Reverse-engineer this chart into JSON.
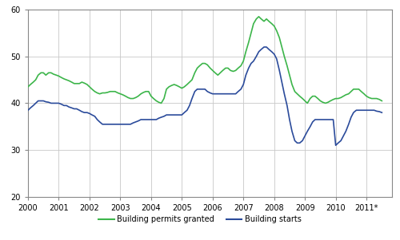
{
  "xlim": [
    2000,
    2011.83
  ],
  "ylim": [
    20,
    60
  ],
  "yticks": [
    20,
    30,
    40,
    50,
    60
  ],
  "xtick_labels": [
    "2000",
    "2001",
    "2002",
    "2003",
    "2004",
    "2005",
    "2006",
    "2007",
    "2008",
    "2009",
    "2010",
    "2011*"
  ],
  "xtick_positions": [
    2000,
    2001,
    2002,
    2003,
    2004,
    2005,
    2006,
    2007,
    2008,
    2009,
    2010,
    2011
  ],
  "permits_color": "#3cb54a",
  "starts_color": "#2b4b9b",
  "background_color": "#ffffff",
  "grid_color": "#c8c8c8",
  "legend_label_permits": "Building permits granted",
  "legend_label_starts": "Building starts",
  "permits_x": [
    2000.0,
    2000.08,
    2000.17,
    2000.25,
    2000.33,
    2000.42,
    2000.5,
    2000.58,
    2000.67,
    2000.75,
    2000.83,
    2000.92,
    2001.0,
    2001.08,
    2001.17,
    2001.25,
    2001.33,
    2001.42,
    2001.5,
    2001.58,
    2001.67,
    2001.75,
    2001.83,
    2001.92,
    2002.0,
    2002.08,
    2002.17,
    2002.25,
    2002.33,
    2002.42,
    2002.5,
    2002.58,
    2002.67,
    2002.75,
    2002.83,
    2002.92,
    2003.0,
    2003.08,
    2003.17,
    2003.25,
    2003.33,
    2003.42,
    2003.5,
    2003.58,
    2003.67,
    2003.75,
    2003.83,
    2003.92,
    2004.0,
    2004.08,
    2004.17,
    2004.25,
    2004.33,
    2004.42,
    2004.5,
    2004.58,
    2004.67,
    2004.75,
    2004.83,
    2004.92,
    2005.0,
    2005.08,
    2005.17,
    2005.25,
    2005.33,
    2005.42,
    2005.5,
    2005.58,
    2005.67,
    2005.75,
    2005.83,
    2005.92,
    2006.0,
    2006.08,
    2006.17,
    2006.25,
    2006.33,
    2006.42,
    2006.5,
    2006.58,
    2006.67,
    2006.75,
    2006.83,
    2006.92,
    2007.0,
    2007.08,
    2007.17,
    2007.25,
    2007.33,
    2007.42,
    2007.5,
    2007.58,
    2007.67,
    2007.75,
    2007.83,
    2007.92,
    2008.0,
    2008.08,
    2008.17,
    2008.25,
    2008.33,
    2008.42,
    2008.5,
    2008.58,
    2008.67,
    2008.75,
    2008.83,
    2008.92,
    2009.0,
    2009.08,
    2009.17,
    2009.25,
    2009.33,
    2009.42,
    2009.5,
    2009.58,
    2009.67,
    2009.75,
    2009.83,
    2009.92,
    2010.0,
    2010.08,
    2010.17,
    2010.25,
    2010.33,
    2010.42,
    2010.5,
    2010.58,
    2010.67,
    2010.75,
    2010.83,
    2010.92,
    2011.0,
    2011.08,
    2011.17,
    2011.25,
    2011.33,
    2011.42,
    2011.5
  ],
  "permits_y": [
    43.5,
    44.0,
    44.5,
    45.0,
    46.0,
    46.5,
    46.5,
    46.0,
    46.5,
    46.5,
    46.2,
    46.0,
    45.8,
    45.5,
    45.2,
    45.0,
    44.8,
    44.5,
    44.2,
    44.2,
    44.2,
    44.5,
    44.3,
    44.0,
    43.5,
    43.0,
    42.5,
    42.2,
    42.0,
    42.2,
    42.2,
    42.3,
    42.5,
    42.5,
    42.5,
    42.2,
    42.0,
    41.8,
    41.5,
    41.2,
    41.0,
    41.0,
    41.2,
    41.5,
    42.0,
    42.3,
    42.5,
    42.5,
    41.5,
    41.0,
    40.5,
    40.2,
    40.0,
    41.0,
    43.0,
    43.5,
    43.8,
    44.0,
    43.8,
    43.5,
    43.2,
    43.5,
    44.0,
    44.5,
    45.0,
    46.5,
    47.5,
    48.0,
    48.5,
    48.5,
    48.2,
    47.5,
    47.0,
    46.5,
    46.0,
    46.5,
    47.0,
    47.5,
    47.5,
    47.0,
    46.8,
    47.0,
    47.5,
    48.0,
    49.0,
    51.0,
    53.0,
    55.0,
    57.0,
    58.0,
    58.5,
    58.0,
    57.5,
    58.0,
    57.5,
    57.0,
    56.5,
    55.5,
    54.0,
    52.0,
    50.0,
    48.0,
    46.0,
    44.0,
    42.5,
    42.0,
    41.5,
    41.0,
    40.5,
    40.0,
    41.0,
    41.5,
    41.5,
    41.0,
    40.5,
    40.2,
    40.0,
    40.2,
    40.5,
    40.8,
    41.0,
    41.0,
    41.2,
    41.5,
    41.8,
    42.0,
    42.5,
    43.0,
    43.0,
    43.0,
    42.5,
    42.0,
    41.5,
    41.2,
    41.0,
    41.0,
    41.0,
    40.8,
    40.5
  ],
  "starts_x": [
    2000.0,
    2000.08,
    2000.17,
    2000.25,
    2000.33,
    2000.42,
    2000.5,
    2000.58,
    2000.67,
    2000.75,
    2000.83,
    2000.92,
    2001.0,
    2001.08,
    2001.17,
    2001.25,
    2001.33,
    2001.42,
    2001.5,
    2001.58,
    2001.67,
    2001.75,
    2001.83,
    2001.92,
    2002.0,
    2002.08,
    2002.17,
    2002.25,
    2002.33,
    2002.42,
    2002.5,
    2002.58,
    2002.67,
    2002.75,
    2002.83,
    2002.92,
    2003.0,
    2003.08,
    2003.17,
    2003.25,
    2003.33,
    2003.42,
    2003.5,
    2003.58,
    2003.67,
    2003.75,
    2003.83,
    2003.92,
    2004.0,
    2004.08,
    2004.17,
    2004.25,
    2004.33,
    2004.42,
    2004.5,
    2004.58,
    2004.67,
    2004.75,
    2004.83,
    2004.92,
    2005.0,
    2005.08,
    2005.17,
    2005.25,
    2005.33,
    2005.42,
    2005.5,
    2005.58,
    2005.67,
    2005.75,
    2005.83,
    2005.92,
    2006.0,
    2006.08,
    2006.17,
    2006.25,
    2006.33,
    2006.42,
    2006.5,
    2006.58,
    2006.67,
    2006.75,
    2006.83,
    2006.92,
    2007.0,
    2007.08,
    2007.17,
    2007.25,
    2007.33,
    2007.42,
    2007.5,
    2007.58,
    2007.67,
    2007.75,
    2007.83,
    2007.92,
    2008.0,
    2008.08,
    2008.17,
    2008.25,
    2008.33,
    2008.42,
    2008.5,
    2008.58,
    2008.67,
    2008.75,
    2008.83,
    2008.92,
    2009.0,
    2009.08,
    2009.17,
    2009.25,
    2009.33,
    2009.42,
    2009.5,
    2009.58,
    2009.67,
    2009.75,
    2009.83,
    2009.92,
    2010.0,
    2010.08,
    2010.17,
    2010.25,
    2010.33,
    2010.42,
    2010.5,
    2010.58,
    2010.67,
    2010.75,
    2010.83,
    2010.92,
    2011.0,
    2011.08,
    2011.17,
    2011.25,
    2011.33,
    2011.42,
    2011.5
  ],
  "starts_y": [
    38.5,
    39.0,
    39.5,
    40.0,
    40.5,
    40.5,
    40.5,
    40.3,
    40.2,
    40.0,
    40.0,
    40.0,
    40.0,
    39.8,
    39.5,
    39.5,
    39.2,
    39.0,
    38.8,
    38.8,
    38.5,
    38.2,
    38.0,
    38.0,
    37.8,
    37.5,
    37.2,
    36.5,
    36.0,
    35.5,
    35.5,
    35.5,
    35.5,
    35.5,
    35.5,
    35.5,
    35.5,
    35.5,
    35.5,
    35.5,
    35.5,
    35.8,
    36.0,
    36.2,
    36.5,
    36.5,
    36.5,
    36.5,
    36.5,
    36.5,
    36.5,
    36.8,
    37.0,
    37.2,
    37.5,
    37.5,
    37.5,
    37.5,
    37.5,
    37.5,
    37.5,
    38.0,
    38.5,
    39.5,
    41.0,
    42.5,
    43.0,
    43.0,
    43.0,
    43.0,
    42.5,
    42.2,
    42.0,
    42.0,
    42.0,
    42.0,
    42.0,
    42.0,
    42.0,
    42.0,
    42.0,
    42.0,
    42.5,
    43.0,
    44.0,
    46.0,
    47.5,
    48.5,
    49.0,
    50.0,
    51.0,
    51.5,
    52.0,
    52.0,
    51.5,
    51.0,
    50.5,
    49.5,
    47.0,
    44.5,
    42.0,
    39.5,
    36.5,
    34.0,
    32.0,
    31.5,
    31.5,
    32.0,
    33.0,
    34.0,
    35.0,
    36.0,
    36.5,
    36.5,
    36.5,
    36.5,
    36.5,
    36.5,
    36.5,
    36.5,
    31.0,
    31.5,
    32.0,
    33.0,
    34.0,
    35.5,
    37.0,
    38.0,
    38.5,
    38.5,
    38.5,
    38.5,
    38.5,
    38.5,
    38.5,
    38.5,
    38.3,
    38.2,
    38.0
  ]
}
